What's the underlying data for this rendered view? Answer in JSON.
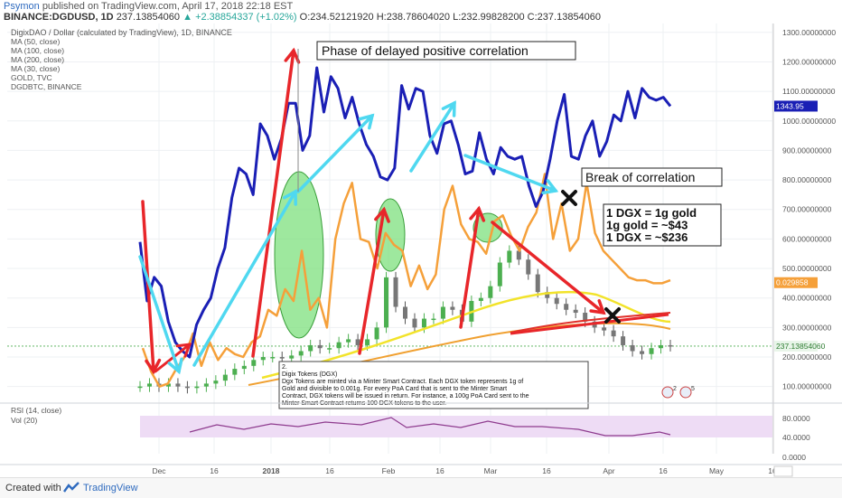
{
  "header": {
    "user": "Psymon",
    "published": "published on TradingView.com, April 17, 2018 22:18 EST",
    "symbol": "BINANCE:DGDUSD, 1D",
    "price": "237.13854060",
    "change": "+2.38854337 (+1.02%)",
    "ohlc": "O:234.52121920 H:238.78604020 L:232.99828200 C:237.13854060"
  },
  "legend": [
    "DigixDAO / Dollar (calculated by TradingView), 1D, BINANCE",
    "MA (50, close)",
    "MA (100, close)",
    "MA (200, close)",
    "MA (30, close)",
    "GOLD, TVC",
    "DGDBTC, BINANCE"
  ],
  "annotations": {
    "phase": "Phase of delayed positive correlation",
    "break": "Break of correlation",
    "conversion": [
      "1 DGX = 1g gold",
      "1g gold = ~$43",
      "1 DGX = ~$236"
    ],
    "note_title": "2.",
    "note_lines": [
      "Digix Tokens (DGX)",
      "Dgx Tokens are minted via a Minter Smart Contract. Each DGX token represents 1g of",
      "Gold and divisible to 0.001g. For every PoA Card that is sent to the Minter Smart",
      "Contract, DGX tokens will be issued in return. For instance, a 100g PoA Card sent to the",
      "Minter Smart Contract returns 100 DGX tokens to the user."
    ]
  },
  "price_labels": {
    "gold": "1343.95",
    "dgdbtc": "0.029858",
    "dgdusd": "237.13854060"
  },
  "event_badges": [
    "2",
    "5"
  ],
  "rsi_panel": {
    "label1": "RSI (14, close)",
    "label2": "Vol (20)"
  },
  "colors": {
    "gold_line": "#1a1fb5",
    "dgdbtc_line": "#f5a03a",
    "ma_yellow": "#f2e32a",
    "ma_orange": "#f0a030",
    "ma_red": "#e0302a",
    "arrow_red": "#e8262a",
    "arrow_cyan": "#4fd8f0",
    "ellipse_green": "#7ee07e",
    "rsi_line": "#8e3b8e",
    "rsi_band": "#eedcf5"
  },
  "chart_data": {
    "type": "line",
    "title": "DigixDAO / Dollar (calculated by TradingView), 1D, BINANCE",
    "x_ticks": [
      "Dec",
      "16",
      "2018",
      "16",
      "Feb",
      "16",
      "Mar",
      "16",
      "Apr",
      "16",
      "May",
      "16"
    ],
    "y_ticks": [
      "1300.00000000",
      "1200.00000000",
      "1100.00000000",
      "1000.00000000",
      "900.00000000",
      "800.00000000",
      "700.00000000",
      "600.00000000",
      "500.00000000",
      "400.00000000",
      "300.00000000",
      "200.00000000",
      "100.00000000"
    ],
    "ylim": [
      50,
      1330
    ],
    "rsi_ticks": [
      "80.0000",
      "40.0000",
      "0.0000"
    ],
    "series": [
      {
        "name": "GOLD, TVC",
        "values": [
          590,
          390,
          470,
          440,
          320,
          250,
          220,
          200,
          310,
          360,
          400,
          500,
          570,
          740,
          840,
          820,
          750,
          990,
          950,
          870,
          940,
          1060,
          1060,
          900,
          950,
          1180,
          1030,
          1150,
          1110,
          1010,
          1080,
          990,
          920,
          880,
          810,
          800,
          840,
          1120,
          1040,
          1110,
          1100,
          950,
          890,
          990,
          1000,
          920,
          820,
          830,
          960,
          870,
          820,
          910,
          880,
          870,
          880,
          780,
          710,
          760,
          870,
          1000,
          1090,
          880,
          870,
          950,
          1000,
          880,
          930,
          1020,
          1000,
          1100,
          1010,
          1110,
          1080,
          1070,
          1080,
          1050
        ]
      },
      {
        "name": "DGDBTC, BINANCE",
        "values": [
          230,
          150,
          100,
          110,
          160,
          200,
          280,
          170,
          250,
          190,
          230,
          210,
          200,
          250,
          270,
          360,
          340,
          430,
          390,
          560,
          360,
          400,
          300,
          600,
          720,
          790,
          600,
          590,
          500,
          620,
          580,
          560,
          440,
          510,
          430,
          480,
          700,
          780,
          650,
          600,
          590,
          550,
          660,
          680,
          610,
          560,
          640,
          690,
          820,
          600,
          720,
          560,
          600,
          790,
          620,
          560,
          530,
          500,
          470,
          460,
          460,
          450,
          450,
          460
        ]
      },
      {
        "name": "DGDUSD candles (close)",
        "values": [
          100,
          110,
          100,
          110,
          100,
          95,
          100,
          110,
          120,
          140,
          160,
          170,
          190,
          200,
          200,
          195,
          205,
          220,
          240,
          230,
          230,
          250,
          260,
          240,
          260,
          300,
          470,
          370,
          330,
          300,
          330,
          330,
          370,
          360,
          320,
          390,
          400,
          440,
          520,
          560,
          530,
          480,
          420,
          400,
          380,
          360,
          350,
          320,
          300,
          290,
          270,
          240,
          220,
          210,
          230,
          240,
          237
        ]
      }
    ]
  }
}
